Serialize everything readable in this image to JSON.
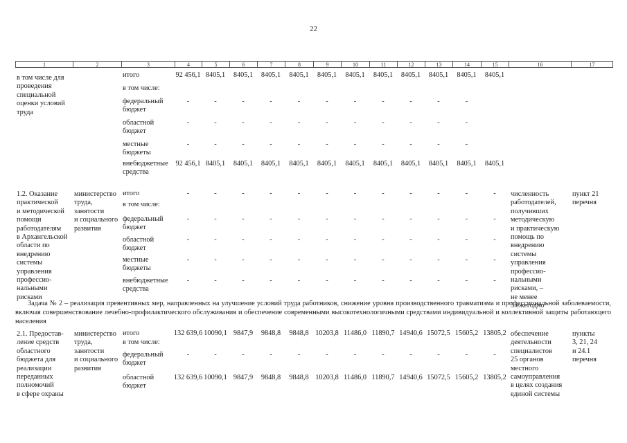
{
  "page": {
    "number": "22"
  },
  "table": {
    "column_headers": [
      "1",
      "2",
      "3",
      "4",
      "5",
      "6",
      "7",
      "8",
      "9",
      "10",
      "11",
      "12",
      "13",
      "14",
      "15",
      "16",
      "17"
    ]
  },
  "blocks": [
    {
      "name": "row-1-1-continuation",
      "col1": "в том числе для\nпроведения\nспециальной\nоценки условий\nтруда",
      "col2": "",
      "budget_rows": [
        {
          "label": "итого",
          "values": [
            "92 456,1",
            "8405,1",
            "8405,1",
            "8405,1",
            "8405,1",
            "8405,1",
            "8405,1",
            "8405,1",
            "8405,1",
            "8405,1",
            "8405,1",
            "8405,1"
          ]
        },
        {
          "label": "в том числе:",
          "values": []
        },
        {
          "label": "федеральный\nбюджет",
          "values": [
            "-",
            "-",
            "-",
            "-",
            "-",
            "-",
            "-",
            "-",
            "-",
            "-",
            "-",
            ""
          ]
        },
        {
          "label": "областной\nбюджет",
          "values": [
            "-",
            "-",
            "-",
            "-",
            "-",
            "-",
            "-",
            "-",
            "-",
            "-",
            "-",
            ""
          ]
        },
        {
          "label": "местные\nбюджеты",
          "values": [
            "-",
            "-",
            "-",
            "-",
            "-",
            "-",
            "-",
            "-",
            "-",
            "-",
            "-",
            ""
          ]
        },
        {
          "label": "внебюджетные\nсредства",
          "values": [
            "92 456,1",
            "8405,1",
            "8405,1",
            "8405,1",
            "8405,1",
            "8405,1",
            "8405,1",
            "8405,1",
            "8405,1",
            "8405,1",
            "8405,1",
            "8405,1"
          ]
        }
      ],
      "col16": "",
      "col17": ""
    },
    {
      "name": "row-1-2",
      "col1": "1.2. Оказание\nпрактической\nи методической\nпомощи\nработодателям\nв Архангельской\nобласти по\nвнедрению\nсистемы\nуправления\nпрофессио-\nнальными рисками",
      "col2": "министерство\nтруда, занятости\nи социального\nразвития",
      "budget_rows": [
        {
          "label": "итого",
          "values": [
            "-",
            "-",
            "-",
            "-",
            "-",
            "-",
            "-",
            "-",
            "-",
            "-",
            "-",
            "-"
          ]
        },
        {
          "label": "в том числе:",
          "values": []
        },
        {
          "label": "федеральный\nбюджет",
          "values": [
            "-",
            "-",
            "-",
            "-",
            "-",
            "-",
            "-",
            "-",
            "-",
            "-",
            "-",
            "-"
          ]
        },
        {
          "label": "областной\nбюджет",
          "values": [
            "-",
            "-",
            "-",
            "-",
            "-",
            "-",
            "-",
            "-",
            "-",
            "-",
            "-",
            "-"
          ]
        },
        {
          "label": "местные\nбюджеты",
          "values": [
            "-",
            "-",
            "-",
            "-",
            "-",
            "-",
            "-",
            "-",
            "-",
            "-",
            "-",
            "-"
          ]
        },
        {
          "label": "внебюджетные\nсредства",
          "values": [
            "-",
            "-",
            "-",
            "-",
            "-",
            "-",
            "-",
            "-",
            "-",
            "-",
            "-",
            "-"
          ]
        }
      ],
      "col16": "численность\nработодателей,\nполучивших\nметодическую\nи практическую\nпомощь по\nвнедрению\nсистемы\nуправления\nпрофессио-\nнальными\nрисками, –\nне менее\n3 ежегодно",
      "col17": "пункт 21\nперечня"
    },
    {
      "name": "row-2-1",
      "col1": "2.1. Предостав-\nление средств\nобластного\nбюджета для\nреализации\nпереданных\nполномочий\nв сфере охраны",
      "col2": "министерство\nтруда, занятости\nи социального\nразвития",
      "budget_rows": [
        {
          "label": "итого",
          "values": [
            "132 639,6",
            "10090,1",
            "9847,9",
            "9848,8",
            "9848,8",
            "10203,8",
            "11486,0",
            "11890,7",
            "14940,6",
            "15072,5",
            "15605,2",
            "13805,2"
          ]
        },
        {
          "label": "в том числе:",
          "values": []
        },
        {
          "label": "федеральный\nбюджет",
          "values": [
            "-",
            "-",
            "-",
            "-",
            "-",
            "-",
            "-",
            "-",
            "-",
            "-",
            "-",
            "-"
          ]
        },
        {
          "label": "областной\nбюджет",
          "values": [
            "132 639,6",
            "10090,1",
            "9847,9",
            "9848,8",
            "9848,8",
            "10203,8",
            "11486,0",
            "11890,7",
            "14940,6",
            "15072,5",
            "15605,2",
            "13805,2"
          ]
        }
      ],
      "col16": "обеспечение\nдеятельности\nспециалистов\n25 органов\nместного\nсамоуправления\nв целях создания\nединой системы",
      "col17": "пункты\n3, 21, 24\nи 24.1\nперечня"
    }
  ],
  "task2": {
    "text": "Задача № 2 – реализация превентивных мер, направленных на улучшение условий труда работников, снижение уровня производственного травматизма и профессиональной заболеваемости, включая совершенствование лечебно-профилактического обслуживания и обеспечение современными высокотехнологичными средствами индивидуальной и коллективной защиты работающего населения"
  }
}
